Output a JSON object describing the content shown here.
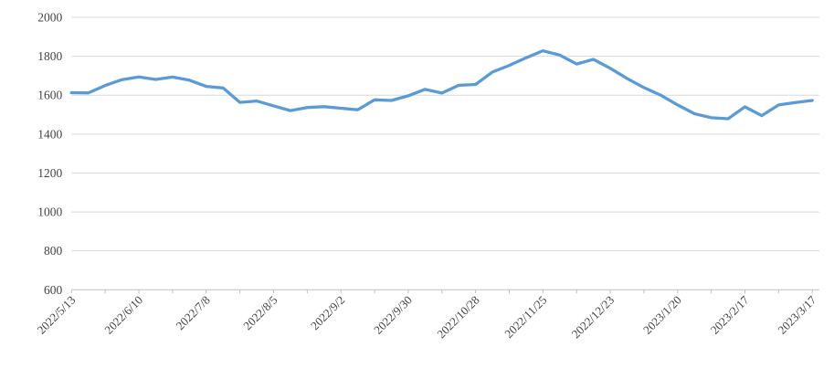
{
  "chart_data": {
    "type": "line",
    "title": "",
    "xlabel": "",
    "ylabel": "",
    "legend": "none",
    "grid": "horizontal",
    "background_color": "#FFFFFF",
    "line_color": "#5B9BD5",
    "gridline_color": "#D9D9D9",
    "axis_color": "#BFBFBF",
    "label_color": "#444444",
    "ylim": [
      600,
      2000
    ],
    "ytick_step": 200,
    "ytick_labels": [
      "600",
      "800",
      "1000",
      "1200",
      "1400",
      "1600",
      "1800",
      "2000"
    ],
    "x_label_every": 4,
    "x_tickmark_every": 2,
    "x_label_rotation_deg": 45,
    "visible_x_labels": [
      "2022/5/13",
      "2022/6/10",
      "2022/7/8",
      "2022/8/5",
      "2022/9/2",
      "2022/9/30",
      "2022/10/28",
      "2022/11/25",
      "2022/12/23",
      "2023/1/20",
      "2023/2/17",
      "2023/3/17"
    ],
    "x": [
      "2022/5/13",
      "2022/5/20",
      "2022/5/27",
      "2022/6/3",
      "2022/6/10",
      "2022/6/17",
      "2022/6/24",
      "2022/7/1",
      "2022/7/8",
      "2022/7/15",
      "2022/7/22",
      "2022/7/29",
      "2022/8/5",
      "2022/8/12",
      "2022/8/19",
      "2022/8/26",
      "2022/9/2",
      "2022/9/9",
      "2022/9/16",
      "2022/9/23",
      "2022/9/30",
      "2022/10/7",
      "2022/10/14",
      "2022/10/21",
      "2022/10/28",
      "2022/11/4",
      "2022/11/11",
      "2022/11/18",
      "2022/11/25",
      "2022/12/2",
      "2022/12/9",
      "2022/12/16",
      "2022/12/23",
      "2022/12/30",
      "2023/1/6",
      "2023/1/13",
      "2023/1/20",
      "2023/1/27",
      "2023/2/3",
      "2023/2/10",
      "2023/2/17",
      "2023/2/24",
      "2023/3/3",
      "2023/3/10",
      "2023/3/17"
    ],
    "series": [
      {
        "name": "value",
        "values": [
          1613,
          1612,
          1650,
          1680,
          1694,
          1681,
          1693,
          1677,
          1645,
          1637,
          1563,
          1570,
          1545,
          1521,
          1537,
          1541,
          1533,
          1525,
          1576,
          1573,
          1597,
          1630,
          1611,
          1651,
          1655,
          1719,
          1753,
          1792,
          1828,
          1806,
          1760,
          1784,
          1738,
          1686,
          1639,
          1600,
          1550,
          1505,
          1484,
          1479,
          1540,
          1495,
          1550,
          1562,
          1573
        ]
      }
    ]
  }
}
